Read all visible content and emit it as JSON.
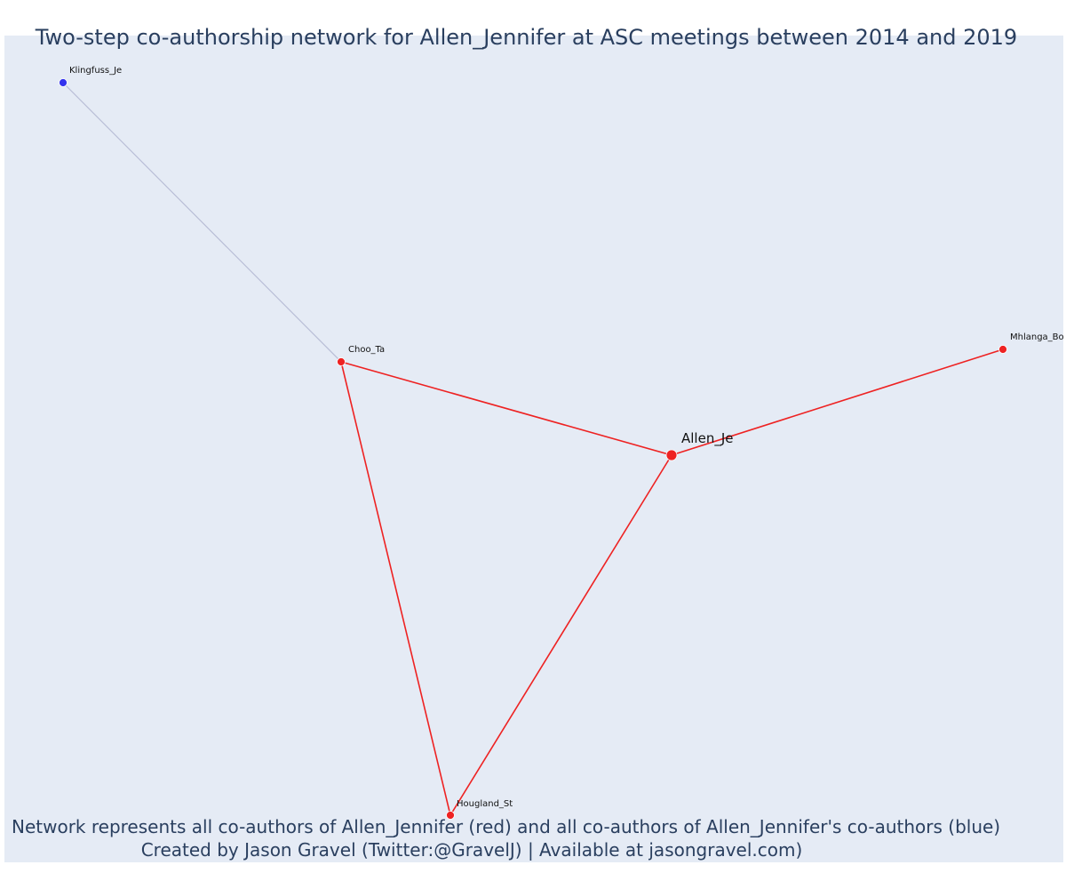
{
  "title": "Two-step co-authorship network for Allen_Jennifer at ASC meetings between 2014 and 2019",
  "caption": {
    "line1": "Network represents all co-authors of Allen_Jennifer (red) and all co-authors of Allen_Jennifer's co-authors (blue)",
    "line2": "Created by Jason Gravel (Twitter:@GravelJ) | Available at jasongravel.com)"
  },
  "colors": {
    "background": "#e5ebf5",
    "text": "#2a3f5f",
    "direct": "#ee2222",
    "second_step": "#3333ee",
    "second_step_edge": "#b8bdd6"
  },
  "nodes": [
    {
      "id": "allen",
      "label": "Allen_Je",
      "group": "focal"
    },
    {
      "id": "choo",
      "label": "Choo_Ta",
      "group": "direct"
    },
    {
      "id": "hougland",
      "label": "Hougland_St",
      "group": "direct"
    },
    {
      "id": "mhlanga",
      "label": "Mhlanga_Bo",
      "group": "direct"
    },
    {
      "id": "klingfuss",
      "label": "Klingfuss_Je",
      "group": "second"
    }
  ],
  "edges": [
    {
      "source": "klingfuss",
      "target": "choo",
      "group": "second"
    },
    {
      "source": "choo",
      "target": "allen",
      "group": "direct"
    },
    {
      "source": "choo",
      "target": "hougland",
      "group": "direct"
    },
    {
      "source": "hougland",
      "target": "allen",
      "group": "direct"
    },
    {
      "source": "allen",
      "target": "mhlanga",
      "group": "direct"
    }
  ]
}
